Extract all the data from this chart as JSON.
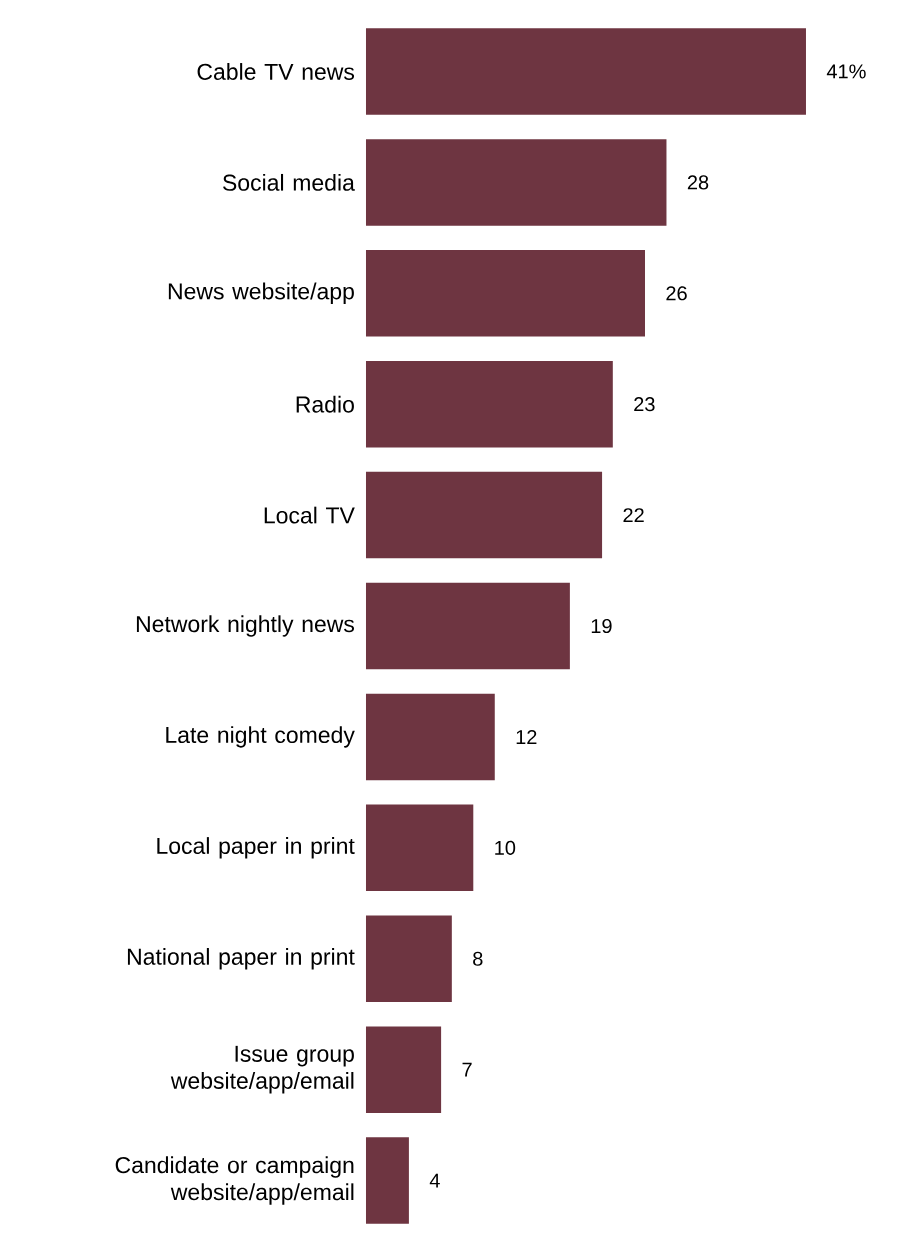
{
  "chart_data": {
    "type": "bar",
    "orientation": "horizontal",
    "categories": [
      "Cable TV news",
      "Social media",
      "News website/app",
      "Radio",
      "Local TV",
      "Network nightly news",
      "Late night comedy",
      "Local paper in print",
      "National paper in print",
      "Issue group website/app/email",
      "Candidate or campaign website/app/email"
    ],
    "values": [
      41,
      28,
      26,
      23,
      22,
      19,
      12,
      10,
      8,
      7,
      4
    ],
    "value_labels": [
      "41%",
      "28",
      "26",
      "23",
      "22",
      "19",
      "12",
      "10",
      "8",
      "7",
      "4"
    ],
    "color": "#6e3541",
    "tick_labels": "y"
  }
}
